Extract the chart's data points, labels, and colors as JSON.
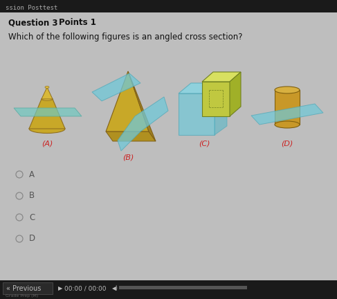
{
  "bg_color": "#bebebe",
  "header_bg": "#1a1a1a",
  "header_text": "ssion Posttest",
  "question_label": "Question 3",
  "points_label": "Points 1",
  "question_text": "Which of the following figures is an angled cross section?",
  "labels": [
    "(A)",
    "(B)",
    "(C)",
    "(D)"
  ],
  "options": [
    "A",
    "B",
    "C",
    "D"
  ],
  "label_color": "#cc2222",
  "text_color": "#111111",
  "option_text_color": "#555555",
  "fig_width": 4.87,
  "fig_height": 4.32,
  "dpi": 100,
  "cone_color": "#c8a828",
  "cone_dark": "#907020",
  "plane_color": "#70c8c0",
  "plane_edge": "#50a8a0",
  "box_color": "#c0c840",
  "box_dark": "#708020",
  "box_light": "#d8e060",
  "cyl_color": "#c89828",
  "cyl_dark": "#806010",
  "pyr_color": "#c8a828",
  "pyr_dark": "#806018",
  "teal_color": "#70c8d8",
  "teal_edge": "#50a8b8"
}
